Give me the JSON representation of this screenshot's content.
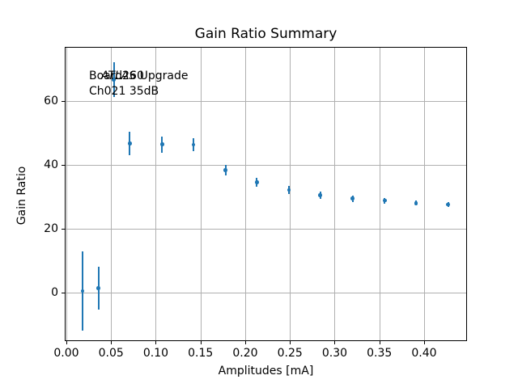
{
  "figure": {
    "title": "Gain Ratio Summary",
    "xlabel": "Amplitudes [mA]",
    "ylabel": "Gain Ratio"
  },
  "annotation": {
    "experiment": "ATLAS",
    "line1_rest": " Upgrade",
    "line2": "Board260",
    "line3": "Ch021 35dB"
  },
  "colors": {
    "series_blue": "#1f77b4",
    "grid": "#b0b0b0",
    "spine": "#000000",
    "background": "#ffffff",
    "text": "#000000"
  },
  "chart_data": {
    "type": "scatter",
    "title": "Gain Ratio Summary",
    "xlabel": "Amplitudes [mA]",
    "ylabel": "Gain Ratio",
    "grid": true,
    "legend": false,
    "marker": "circle",
    "error_bars": "y",
    "xlim": [
      -0.0018,
      0.448
    ],
    "ylim": [
      -15.2,
      77.1
    ],
    "x_ticks": [
      0.0,
      0.05,
      0.1,
      0.15,
      0.2,
      0.25,
      0.3,
      0.35,
      0.4
    ],
    "x_tick_labels": [
      "0.00",
      "0.05",
      "0.10",
      "0.15",
      "0.20",
      "0.25",
      "0.30",
      "0.35",
      "0.40"
    ],
    "y_ticks": [
      0,
      20,
      40,
      60
    ],
    "y_tick_labels": [
      "0",
      "20",
      "40",
      "60"
    ],
    "annotations": [
      "ATLAS Upgrade",
      "Board260",
      "Ch021 35dB"
    ],
    "series": [
      {
        "name": "gain_ratio",
        "color": "#1f77b4",
        "x": [
          0.018,
          0.036,
          0.053,
          0.071,
          0.107,
          0.142,
          0.178,
          0.213,
          0.249,
          0.284,
          0.32,
          0.356,
          0.391,
          0.427
        ],
        "y": [
          0.5,
          1.4,
          66.8,
          46.8,
          46.5,
          46.4,
          38.5,
          34.7,
          32.2,
          30.6,
          29.5,
          28.9,
          28.1,
          27.7
        ],
        "yerr": [
          12.4,
          6.7,
          5.5,
          3.7,
          2.5,
          2.1,
          1.6,
          1.4,
          1.3,
          1.2,
          1.0,
          0.9,
          0.8,
          0.7
        ]
      }
    ]
  }
}
